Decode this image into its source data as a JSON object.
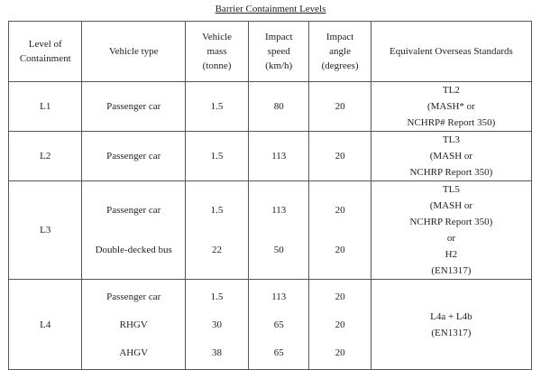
{
  "title": "Barrier Containment Levels",
  "headers": [
    [
      "Level of",
      "Containment"
    ],
    [
      "Vehicle type"
    ],
    [
      "Vehicle",
      "mass",
      "(tonne)"
    ],
    [
      "Impact",
      "speed",
      "(km/h)"
    ],
    [
      "Impact",
      "angle",
      "(degrees)"
    ],
    [
      "Equivalent Overseas Standards"
    ]
  ],
  "rows": [
    {
      "level": "L1",
      "vehicles": [
        {
          "type": "Passenger car",
          "mass": "1.5",
          "speed": "80",
          "angle": "20"
        }
      ],
      "standards": [
        "TL2",
        "(MASH* or",
        "NCHRP# Report 350)"
      ]
    },
    {
      "level": "L2",
      "vehicles": [
        {
          "type": "Passenger car",
          "mass": "1.5",
          "speed": "113",
          "angle": "20"
        }
      ],
      "standards": [
        "TL3",
        "(MASH or",
        "NCHRP Report 350)"
      ]
    },
    {
      "level": "L3",
      "vehicles": [
        {
          "type": "Passenger car",
          "mass": "1.5",
          "speed": "113",
          "angle": "20"
        },
        {
          "type": "Double-decked bus",
          "mass": "22",
          "speed": "50",
          "angle": "20"
        }
      ],
      "standards": [
        "TL5",
        "(MASH or",
        "NCHRP Report 350)",
        "or",
        "H2",
        "(EN1317)"
      ]
    },
    {
      "level": "L4",
      "vehicles": [
        {
          "type": "Passenger car",
          "mass": "1.5",
          "speed": "113",
          "angle": "20"
        },
        {
          "type": "RHGV",
          "mass": "30",
          "speed": "65",
          "angle": "20"
        },
        {
          "type": "AHGV",
          "mass": "38",
          "speed": "65",
          "angle": "20"
        }
      ],
      "standards": [
        "L4a + L4b",
        "(EN1317)"
      ]
    }
  ]
}
